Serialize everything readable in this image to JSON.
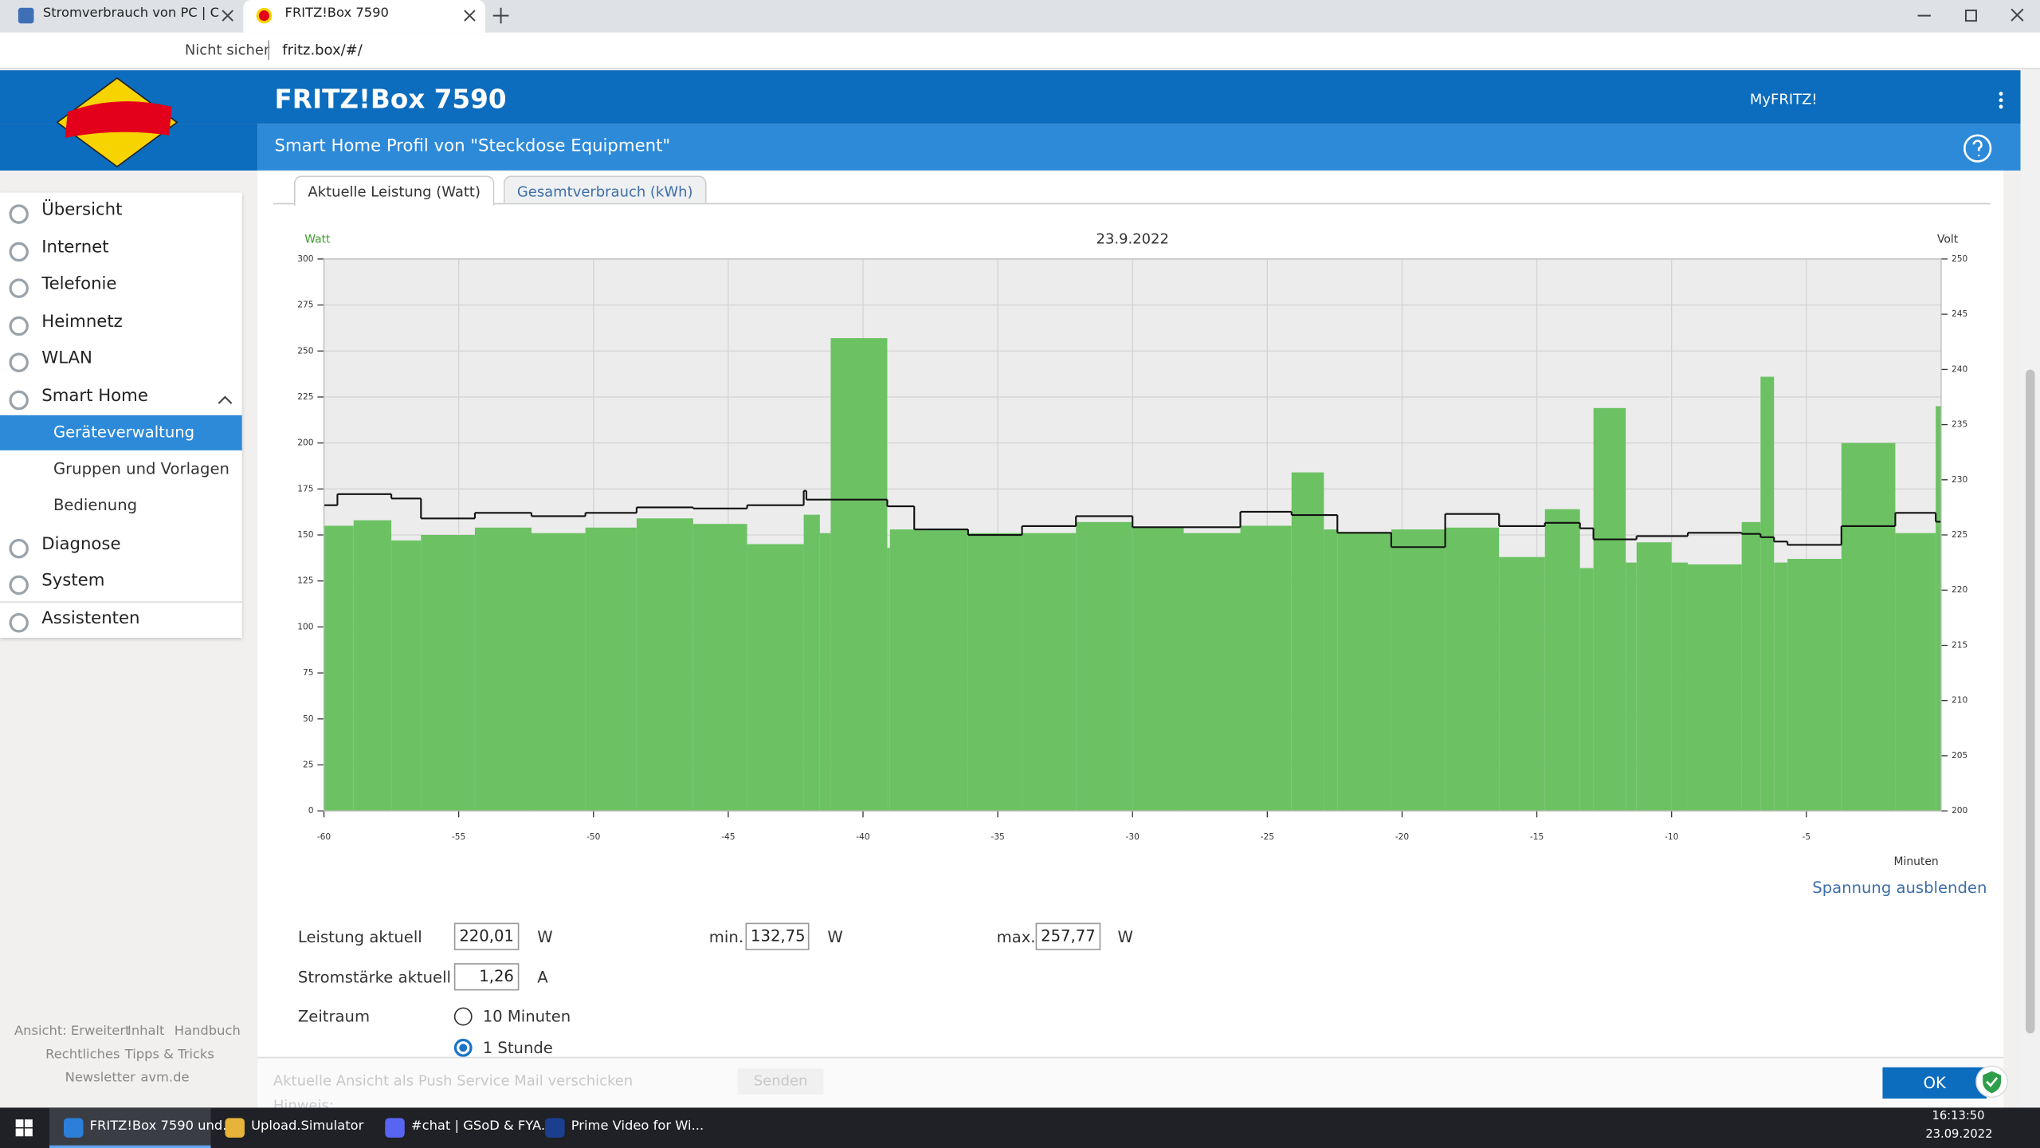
{
  "browser": {
    "tabs": [
      "Stromverbrauch von PC | Compu",
      "FRITZ!Box 7590"
    ],
    "security": "Nicht sicher",
    "url": "fritz.box/#/"
  },
  "header": {
    "brand": "FRITZ!Box 7590",
    "myfritz": "MyFRITZ!",
    "subtitle": "Smart Home Profil von \"Steckdose Equipment\""
  },
  "nav": {
    "items": [
      "Übersicht",
      "Internet",
      "Telefonie",
      "Heimnetz",
      "WLAN",
      "Smart Home"
    ],
    "subitems": [
      "Geräteverwaltung",
      "Gruppen und Vorlagen",
      "Bedienung"
    ],
    "items_after": [
      "Diagnose",
      "System",
      "Assistenten"
    ],
    "footer_links": [
      "Ansicht: Erweitert",
      "Inhalt",
      "Handbuch",
      "Rechtliches",
      "Tipps & Tricks",
      "Newsletter",
      "avm.de"
    ]
  },
  "content_tabs": [
    "Aktuelle Leistung (Watt)",
    "Gesamtverbrauch (kWh)"
  ],
  "chart_data": {
    "type": "bar",
    "title": "23.9.2022",
    "y_label": "Watt",
    "y2_label": "Volt",
    "x_label": "Minuten",
    "xlim": [
      -60,
      0
    ],
    "xticks": [
      -60,
      -55,
      -50,
      -45,
      -40,
      -35,
      -30,
      -25,
      -20,
      -15,
      -10,
      -5
    ],
    "ylim": [
      0,
      300
    ],
    "yticks": [
      0,
      25,
      50,
      75,
      100,
      125,
      150,
      175,
      200,
      225,
      250,
      275,
      300
    ],
    "y2lim": [
      200,
      250
    ],
    "y2ticks": [
      200,
      205,
      210,
      215,
      220,
      225,
      230,
      235,
      240,
      245,
      250
    ],
    "grid": true,
    "series": [
      {
        "type": "bar",
        "color": "#6cc263",
        "bins": [
          -60,
          -58.9,
          -57.5,
          -56.4,
          -54.4,
          -52.3,
          -50.3,
          -48.4,
          -46.3,
          -44.3,
          -42.2,
          -41.6,
          -41.2,
          -39.1,
          -39.0,
          -36.1,
          -34.1,
          -32.1,
          -30.0,
          -28.1,
          -26.0,
          -24.1,
          -22.9,
          -22.4,
          -20.4,
          -18.4,
          -16.4,
          -14.7,
          -13.4,
          -12.9,
          -11.7,
          -11.3,
          -10.0,
          -9.4,
          -7.4,
          -6.7,
          -6.2,
          -5.7,
          -3.7,
          -1.7,
          -0.2,
          0
        ],
        "values": [
          155,
          158,
          147,
          150,
          154,
          151,
          154,
          159,
          156,
          145,
          161,
          151,
          257,
          143,
          153,
          151,
          151,
          157,
          154,
          151,
          155,
          184,
          153,
          151,
          153,
          154,
          138,
          164,
          132,
          219,
          135,
          146,
          135,
          134,
          157,
          236,
          135,
          137,
          200,
          151,
          220
        ]
      },
      {
        "type": "step",
        "axis": "y2",
        "color": "#111111",
        "bins": [
          -60,
          -59.5,
          -57.5,
          -56.4,
          -54.4,
          -52.3,
          -50.3,
          -48.4,
          -46.3,
          -44.3,
          -42.2,
          -42.1,
          -39.1,
          -38.1,
          -36.1,
          -34.1,
          -32.1,
          -30.0,
          -26.0,
          -24.1,
          -22.4,
          -20.4,
          -18.4,
          -16.4,
          -14.7,
          -13.4,
          -12.9,
          -11.3,
          -9.4,
          -7.4,
          -6.7,
          -6.2,
          -5.7,
          -3.7,
          -1.7,
          -0.2,
          0
        ],
        "values": [
          227.7,
          228.7,
          228.3,
          226.5,
          227.0,
          226.7,
          227.0,
          227.5,
          227.4,
          227.7,
          229.0,
          228.2,
          227.6,
          225.5,
          225.0,
          225.8,
          226.7,
          225.7,
          227.1,
          226.8,
          225.2,
          223.9,
          226.9,
          225.8,
          226.1,
          225.6,
          224.6,
          224.9,
          225.2,
          225.1,
          224.8,
          224.4,
          224.1,
          225.8,
          227.0,
          226.2
        ]
      }
    ]
  },
  "toggle_link": "Spannung ausblenden",
  "form": {
    "power": {
      "label": "Leistung aktuell",
      "value": "220,01",
      "unit": "W"
    },
    "min": {
      "label": "min.",
      "value": "132,75",
      "unit": "W"
    },
    "max": {
      "label": "max.",
      "value": "257,77",
      "unit": "W"
    },
    "current": {
      "label": "Stromstärke aktuell",
      "value": "1,26",
      "unit": "A"
    },
    "period": {
      "label": "Zeitraum",
      "options": [
        "10 Minuten",
        "1 Stunde"
      ],
      "selected": 1
    }
  },
  "bottom": {
    "push_text": "Aktuelle Ansicht als Push Service Mail verschicken",
    "send": "Senden",
    "hint": "Hinweis:",
    "ok": "OK"
  },
  "taskbar": {
    "apps": [
      "FRITZ!Box 7590 und...",
      "Upload.Simulator",
      "#chat | GSoD & FYA...",
      "Prime Video for Wi..."
    ],
    "time": "16:13:50",
    "date": "23.09.2022"
  }
}
